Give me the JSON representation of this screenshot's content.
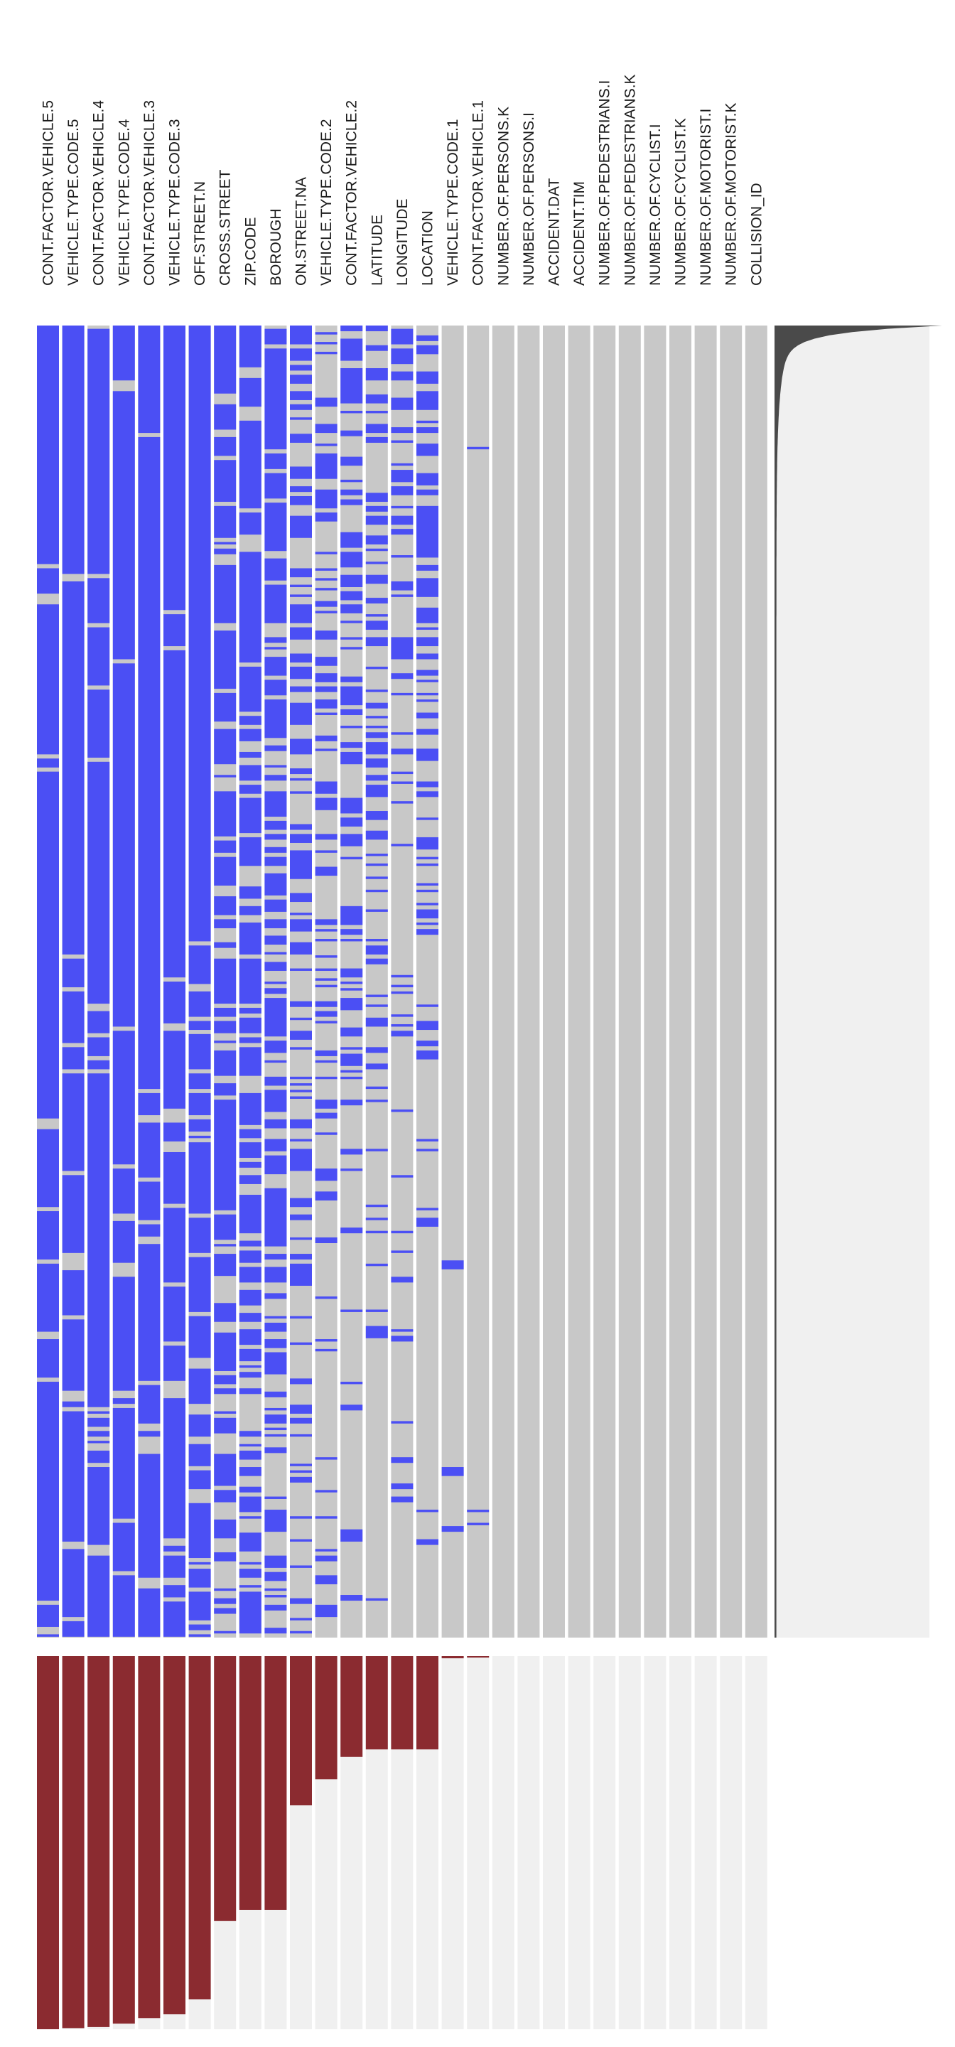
{
  "chart_data": {
    "type": "heatmap",
    "title": "",
    "colors": {
      "present": "#4b4ff4",
      "missing": "#c8c8c8",
      "bar": "#8b2b30",
      "bar_track": "#f0f0f0",
      "row_profile": "#4a4a4a",
      "row_profile_track": "#f0f0f0"
    },
    "columns": [
      {
        "name": "CONT.FACTOR.VEHICLE.5",
        "missing_fraction": 1.0
      },
      {
        "name": "VEHICLE.TYPE.CODE.5",
        "missing_fraction": 0.997
      },
      {
        "name": "CONT.FACTOR.VEHICLE.4",
        "missing_fraction": 0.994
      },
      {
        "name": "VEHICLE.TYPE.CODE.4",
        "missing_fraction": 0.985
      },
      {
        "name": "CONT.FACTOR.VEHICLE.3",
        "missing_fraction": 0.97
      },
      {
        "name": "VEHICLE.TYPE.CODE.3",
        "missing_fraction": 0.96
      },
      {
        "name": "OFF.STREET.N",
        "missing_fraction": 0.92
      },
      {
        "name": "CROSS.STREET",
        "missing_fraction": 0.71
      },
      {
        "name": "ZIP.CODE",
        "missing_fraction": 0.68
      },
      {
        "name": "BOROUGH",
        "missing_fraction": 0.68
      },
      {
        "name": "ON.STREET.NA",
        "missing_fraction": 0.4
      },
      {
        "name": "VEHICLE.TYPE.CODE.2",
        "missing_fraction": 0.33
      },
      {
        "name": "CONT.FACTOR.VEHICLE.2",
        "missing_fraction": 0.27
      },
      {
        "name": "LATITUDE",
        "missing_fraction": 0.25
      },
      {
        "name": "LONGITUDE",
        "missing_fraction": 0.25
      },
      {
        "name": "LOCATION",
        "missing_fraction": 0.25
      },
      {
        "name": "VEHICLE.TYPE.CODE.1",
        "missing_fraction": 0.006
      },
      {
        "name": "CONT.FACTOR.VEHICLE.1",
        "missing_fraction": 0.004
      },
      {
        "name": "NUMBER.OF.PERSONS.K",
        "missing_fraction": 0.0
      },
      {
        "name": "NUMBER.OF.PERSONS.I",
        "missing_fraction": 0.0
      },
      {
        "name": "ACCIDENT.DAT",
        "missing_fraction": 0.0
      },
      {
        "name": "ACCIDENT.TIM",
        "missing_fraction": 0.0
      },
      {
        "name": "NUMBER.OF.PEDESTRIANS.I",
        "missing_fraction": 0.0
      },
      {
        "name": "NUMBER.OF.PEDESTRIANS.K",
        "missing_fraction": 0.0
      },
      {
        "name": "NUMBER.OF.CYCLIST.I",
        "missing_fraction": 0.0
      },
      {
        "name": "NUMBER.OF.CYCLIST.K",
        "missing_fraction": 0.0
      },
      {
        "name": "NUMBER.OF.MOTORIST.I",
        "missing_fraction": 0.0
      },
      {
        "name": "NUMBER.OF.MOTORIST.K",
        "missing_fraction": 0.0
      },
      {
        "name": "COLLISION_ID",
        "missing_fraction": 0.0
      }
    ],
    "rows_sampled": 400,
    "grid": false,
    "legend": "none"
  }
}
